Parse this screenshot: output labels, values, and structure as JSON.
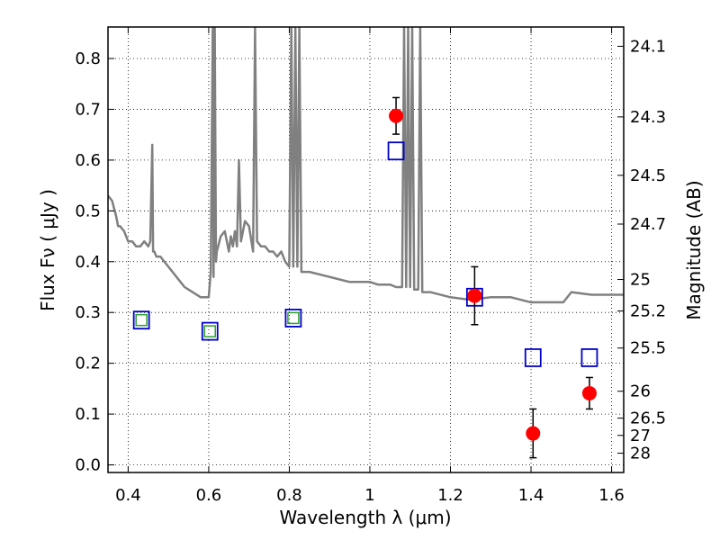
{
  "chart_data": {
    "type": "scatter",
    "xlabel": "Wavelength  λ (μm)",
    "ylabel": "Flux  Fν  ( μJy )",
    "y2label": "Magnitude (AB)",
    "xlim": [
      0.35,
      1.63
    ],
    "ylim": [
      -0.015,
      0.862
    ],
    "x_ticks": [
      0.4,
      0.6,
      0.8,
      1.0,
      1.2,
      1.4,
      1.6
    ],
    "x_tick_labels": [
      "0.4",
      "0.6",
      "0.8",
      "1",
      "1.2",
      "1.4",
      "1.6"
    ],
    "y_ticks": [
      0.0,
      0.1,
      0.2,
      0.3,
      0.4,
      0.5,
      0.6,
      0.7,
      0.8
    ],
    "y_tick_labels": [
      "0.0",
      "0.1",
      "0.2",
      "0.3",
      "0.4",
      "0.5",
      "0.6",
      "0.7",
      "0.8"
    ],
    "y2_ticks": [
      {
        "label": "24.1",
        "flux": 0.824
      },
      {
        "label": "24.3",
        "flux": 0.685
      },
      {
        "label": "24.5",
        "flux": 0.57
      },
      {
        "label": "24.7",
        "flux": 0.474
      },
      {
        "label": "25",
        "flux": 0.365
      },
      {
        "label": "25.2",
        "flux": 0.303
      },
      {
        "label": "25.5",
        "flux": 0.23
      },
      {
        "label": "26",
        "flux": 0.145
      },
      {
        "label": "26.5",
        "flux": 0.092
      },
      {
        "label": "27",
        "flux": 0.058
      },
      {
        "label": "28",
        "flux": 0.023
      }
    ],
    "grid": true,
    "colors": {
      "template": "#808080",
      "observed": "#ff0000",
      "model_box": "#0000cc",
      "model_inner": "#2ca02c",
      "errorbar": "#000000"
    },
    "series": [
      {
        "kind": "line",
        "x": [
          0.35,
          0.36,
          0.37,
          0.375,
          0.38,
          0.39,
          0.4,
          0.41,
          0.42,
          0.43,
          0.44,
          0.45,
          0.455,
          0.46,
          0.462,
          0.465,
          0.47,
          0.48,
          0.5,
          0.52,
          0.54,
          0.56,
          0.58,
          0.59,
          0.6,
          0.605,
          0.61,
          0.612,
          0.615,
          0.618,
          0.62,
          0.63,
          0.64,
          0.65,
          0.655,
          0.66,
          0.665,
          0.67,
          0.675,
          0.68,
          0.685,
          0.69,
          0.7,
          0.71,
          0.715,
          0.72,
          0.73,
          0.74,
          0.75,
          0.76,
          0.77,
          0.78,
          0.79,
          0.8,
          0.805,
          0.81,
          0.815,
          0.82,
          0.825,
          0.83,
          0.85,
          0.9,
          0.95,
          1.0,
          1.02,
          1.05,
          1.065,
          1.08,
          1.085,
          1.09,
          1.095,
          1.1,
          1.105,
          1.11,
          1.12,
          1.125,
          1.13,
          1.15,
          1.2,
          1.25,
          1.3,
          1.35,
          1.4,
          1.45,
          1.48,
          1.5,
          1.55,
          1.6,
          1.63
        ],
        "y": [
          0.53,
          0.52,
          0.49,
          0.47,
          0.47,
          0.46,
          0.44,
          0.44,
          0.43,
          0.43,
          0.44,
          0.43,
          0.44,
          0.63,
          0.42,
          0.42,
          0.41,
          0.41,
          0.39,
          0.37,
          0.35,
          0.34,
          0.33,
          0.33,
          0.33,
          0.38,
          0.86,
          0.37,
          0.86,
          0.4,
          0.42,
          0.45,
          0.46,
          0.42,
          0.45,
          0.43,
          0.46,
          0.43,
          0.6,
          0.44,
          0.46,
          0.48,
          0.47,
          0.42,
          0.86,
          0.44,
          0.43,
          0.43,
          0.42,
          0.42,
          0.41,
          0.42,
          0.4,
          0.39,
          0.86,
          0.39,
          0.86,
          0.39,
          0.86,
          0.38,
          0.38,
          0.37,
          0.36,
          0.36,
          0.355,
          0.355,
          0.35,
          0.35,
          0.86,
          0.35,
          0.86,
          0.35,
          0.86,
          0.345,
          0.345,
          0.86,
          0.34,
          0.34,
          0.33,
          0.325,
          0.33,
          0.33,
          0.32,
          0.32,
          0.32,
          0.34,
          0.335,
          0.335,
          0.335
        ]
      },
      {
        "kind": "errorbar",
        "x": [
          1.065,
          1.26,
          1.405,
          1.545
        ],
        "y": [
          0.687,
          0.333,
          0.062,
          0.141
        ],
        "yerr": [
          0.036,
          0.057,
          0.048,
          0.031
        ]
      },
      {
        "kind": "box",
        "x": [
          0.433,
          0.603,
          0.81,
          1.065,
          1.26,
          1.405,
          1.545
        ],
        "y": [
          0.285,
          0.263,
          0.289,
          0.618,
          0.33,
          0.211,
          0.211
        ]
      },
      {
        "kind": "inner-box",
        "x": [
          0.433,
          0.603,
          0.81
        ],
        "y": [
          0.285,
          0.263,
          0.289
        ]
      }
    ]
  }
}
